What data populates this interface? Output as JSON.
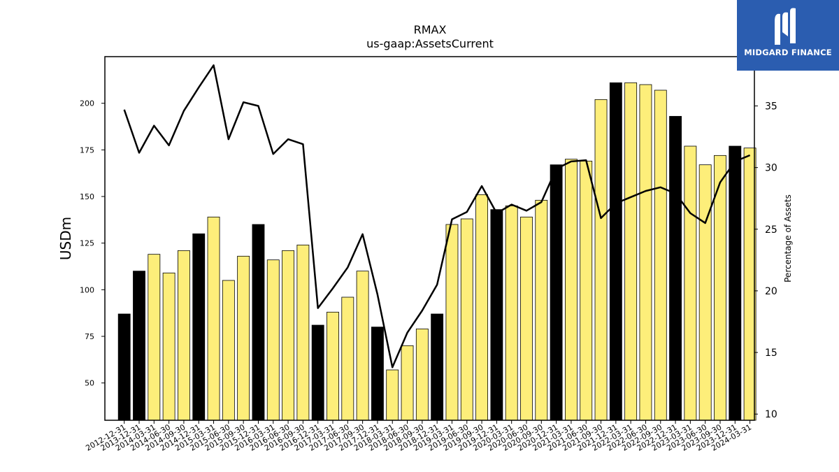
{
  "chart_data": {
    "type": "bar",
    "title": "RMAX",
    "subtitle": "us-gaap:AssetsCurrent",
    "ylabel": "USDm",
    "y2label": "Percentage of Assets",
    "ylim": [
      30,
      225
    ],
    "y2lim": [
      9.5,
      39
    ],
    "yticks": [
      50,
      75,
      100,
      125,
      150,
      175,
      200
    ],
    "y2ticks": [
      10,
      15,
      20,
      25,
      30,
      35
    ],
    "categories": [
      "2012-12-31",
      "2013-12-31",
      "2014-03-31",
      "2014-06-30",
      "2014-09-30",
      "2014-12-31",
      "2015-03-31",
      "2015-06-30",
      "2015-09-30",
      "2015-12-31",
      "2016-03-31",
      "2016-06-30",
      "2016-09-30",
      "2016-12-31",
      "2017-03-31",
      "2017-06-30",
      "2017-09-30",
      "2017-12-31",
      "2018-03-31",
      "2018-06-30",
      "2018-09-30",
      "2018-12-31",
      "2019-03-31",
      "2019-06-30",
      "2019-09-30",
      "2019-12-31",
      "2020-03-31",
      "2020-06-30",
      "2020-09-30",
      "2020-12-31",
      "2021-03-31",
      "2021-06-30",
      "2021-09-30",
      "2021-12-31",
      "2022-03-31",
      "2022-06-30",
      "2022-09-30",
      "2022-12-31",
      "2023-03-31",
      "2023-06-30",
      "2023-09-30",
      "2023-12-31",
      "2024-03-31"
    ],
    "bars": [
      87,
      110,
      119,
      109,
      121,
      130,
      139,
      105,
      118,
      135,
      116,
      121,
      124,
      81,
      88,
      96,
      110,
      80,
      57,
      70,
      79,
      87,
      135,
      138,
      151,
      143,
      145,
      139,
      148,
      167,
      170,
      169,
      202,
      211,
      211,
      210,
      207,
      193,
      177,
      167,
      172,
      177,
      176
    ],
    "bar_year_end": [
      true,
      true,
      false,
      false,
      false,
      true,
      false,
      false,
      false,
      true,
      false,
      false,
      false,
      true,
      false,
      false,
      false,
      true,
      false,
      false,
      false,
      true,
      false,
      false,
      false,
      true,
      false,
      false,
      false,
      true,
      false,
      false,
      false,
      true,
      false,
      false,
      false,
      true,
      false,
      false,
      false,
      true,
      false
    ],
    "line_pct": [
      34.7,
      31.2,
      33.4,
      31.8,
      34.6,
      36.5,
      38.3,
      32.3,
      35.3,
      35.0,
      31.1,
      32.3,
      31.9,
      18.6,
      20.2,
      21.9,
      24.6,
      19.7,
      13.8,
      16.6,
      18.4,
      20.5,
      25.8,
      26.4,
      28.5,
      26.3,
      27.0,
      26.5,
      27.2,
      29.9,
      30.5,
      30.6,
      25.9,
      27.1,
      27.6,
      28.1,
      28.4,
      27.9,
      26.3,
      25.5,
      28.8,
      30.5,
      31.0
    ],
    "colors": {
      "bar_regular": "#fdee7a",
      "bar_year_end": "#000000",
      "bar_edge": "#000000",
      "line": "#000000"
    },
    "grid": false
  },
  "logo": {
    "text": "MIDGARD FINANCE",
    "background": "#2b5db0",
    "icon": "midgard-m-logo-icon"
  }
}
